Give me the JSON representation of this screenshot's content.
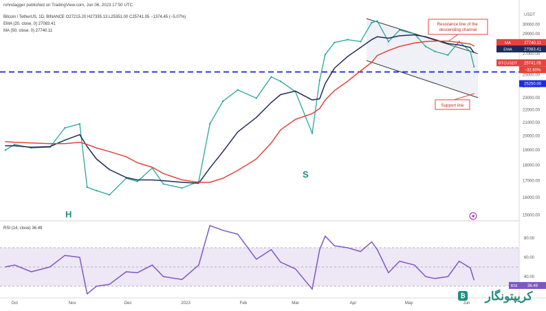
{
  "header": {
    "published": "rohndagger published on TradingView.com, Jun 06, 2023 17:50 UTC",
    "symbol_line": "Bitcoin / TetherUS, 1D, BINANCE  O27215.20 H27335.13 L25351.00 C25741.05 −1374.45 (−5.07%)",
    "ema_line": "EMA (20, close, 0)  27083.41",
    "ma_line": "MA (50, close, 0)  27740.11"
  },
  "annotations": {
    "resistance": "Resistance line of the descending channel",
    "support": "Support line",
    "head_letter": "H",
    "shoulder_letter": "S"
  },
  "price_axis": {
    "currency": "USDT",
    "ticks": [
      "30000.00",
      "29000.00",
      "28000.00",
      "27000.00",
      "26000.00",
      "25000.00",
      "24000.00",
      "23000.00",
      "22000.00",
      "21000.00",
      "20000.00",
      "19000.00",
      "18000.00",
      "17000.00",
      "16000.00",
      "15000.00"
    ],
    "ma_tag": {
      "label": "MA",
      "value": "27740.11",
      "color": "#e5423b"
    },
    "ema_tag": {
      "label": "EMA",
      "value": "27083.41",
      "color": "#1c2b5a"
    },
    "last_tag": {
      "label": "BTCUSDT",
      "value": "25741.05",
      "color": "#e5423b"
    },
    "change_tag": "−32.60%",
    "support_tag": "25250.00"
  },
  "rsi_panel": {
    "label": "RSI (14, close)  36.49",
    "ticks": [
      "80.00",
      "60.00",
      "40.00"
    ],
    "tag": {
      "label": "RSI",
      "value": "36.49"
    }
  },
  "time_axis": [
    "Oct",
    "Nov",
    "Dec",
    "2023",
    "Feb",
    "Mar",
    "Apr",
    "May",
    "Jun"
  ],
  "watermark": "کریپتونگار",
  "chart_data": {
    "type": "line",
    "title": "Bitcoin / TetherUS, 1D, BINANCE",
    "xlabel": "",
    "ylabel": "",
    "yscale": "log",
    "ylim": [
      14800,
      31200
    ],
    "x": [
      "2022-09-26",
      "2022-10-01",
      "2022-10-10",
      "2022-10-20",
      "2022-10-28",
      "2022-11-05",
      "2022-11-09",
      "2022-11-14",
      "2022-11-21",
      "2022-11-30",
      "2022-12-06",
      "2022-12-14",
      "2022-12-20",
      "2022-12-30",
      "2023-01-08",
      "2023-01-14",
      "2023-01-21",
      "2023-01-29",
      "2023-02-08",
      "2023-02-16",
      "2023-02-21",
      "2023-03-01",
      "2023-03-10",
      "2023-03-14",
      "2023-03-17",
      "2023-03-22",
      "2023-03-29",
      "2023-04-05",
      "2023-04-11",
      "2023-04-14",
      "2023-04-20",
      "2023-04-26",
      "2023-05-04",
      "2023-05-10",
      "2023-05-15",
      "2023-05-22",
      "2023-05-28",
      "2023-06-03",
      "2023-06-05"
    ],
    "series": [
      {
        "name": "BTCUSDT",
        "color": "#26a69a",
        "values": [
          19000,
          19400,
          19150,
          19200,
          20600,
          20900,
          16600,
          16400,
          16150,
          17150,
          16950,
          17800,
          16800,
          16550,
          16950,
          20900,
          22700,
          23650,
          22950,
          24800,
          24400,
          23500,
          20200,
          24500,
          26900,
          28100,
          28400,
          28200,
          30200,
          30400,
          28200,
          29400,
          29000,
          27700,
          27200,
          26850,
          28200,
          27200,
          25741.05
        ]
      },
      {
        "name": "EMA (20, close, 0)",
        "color": "#1c2b5a",
        "values": [
          19300,
          19300,
          19200,
          19250,
          19700,
          20100,
          19250,
          18400,
          17700,
          17200,
          17050,
          17050,
          17000,
          16900,
          16850,
          17800,
          18900,
          20300,
          21400,
          22600,
          23250,
          23550,
          22800,
          22900,
          24200,
          25600,
          26700,
          27600,
          28400,
          28700,
          28550,
          28800,
          28900,
          28700,
          28400,
          28000,
          27850,
          27600,
          27083.41
        ]
      },
      {
        "name": "MA (50, close, 0)",
        "color": "#e5423b",
        "values": [
          19600,
          19550,
          19500,
          19450,
          19450,
          19550,
          19400,
          19150,
          18900,
          18550,
          18150,
          17850,
          17450,
          17050,
          16900,
          16900,
          17150,
          17650,
          18400,
          19500,
          20450,
          21250,
          21700,
          22100,
          22800,
          23600,
          24400,
          25350,
          26150,
          26800,
          27300,
          27700,
          28050,
          28200,
          28250,
          28250,
          28100,
          27950,
          27740.11
        ]
      },
      {
        "name": "RSI (14, close)",
        "color": "#7e57c2",
        "values": [
          50,
          52,
          45,
          50,
          62,
          60,
          22,
          30,
          32,
          45,
          44,
          52,
          40,
          37,
          52,
          93,
          88,
          84,
          58,
          68,
          55,
          48,
          27,
          68,
          82,
          72,
          70,
          66,
          76,
          68,
          44,
          56,
          52,
          40,
          38,
          40,
          56,
          49,
          36.49
        ]
      }
    ],
    "levels": [
      {
        "name": "Support",
        "value": 25250
      }
    ],
    "rsi_ylim": [
      20,
      95
    ],
    "rsi_levels": [
      70,
      50,
      30
    ]
  }
}
